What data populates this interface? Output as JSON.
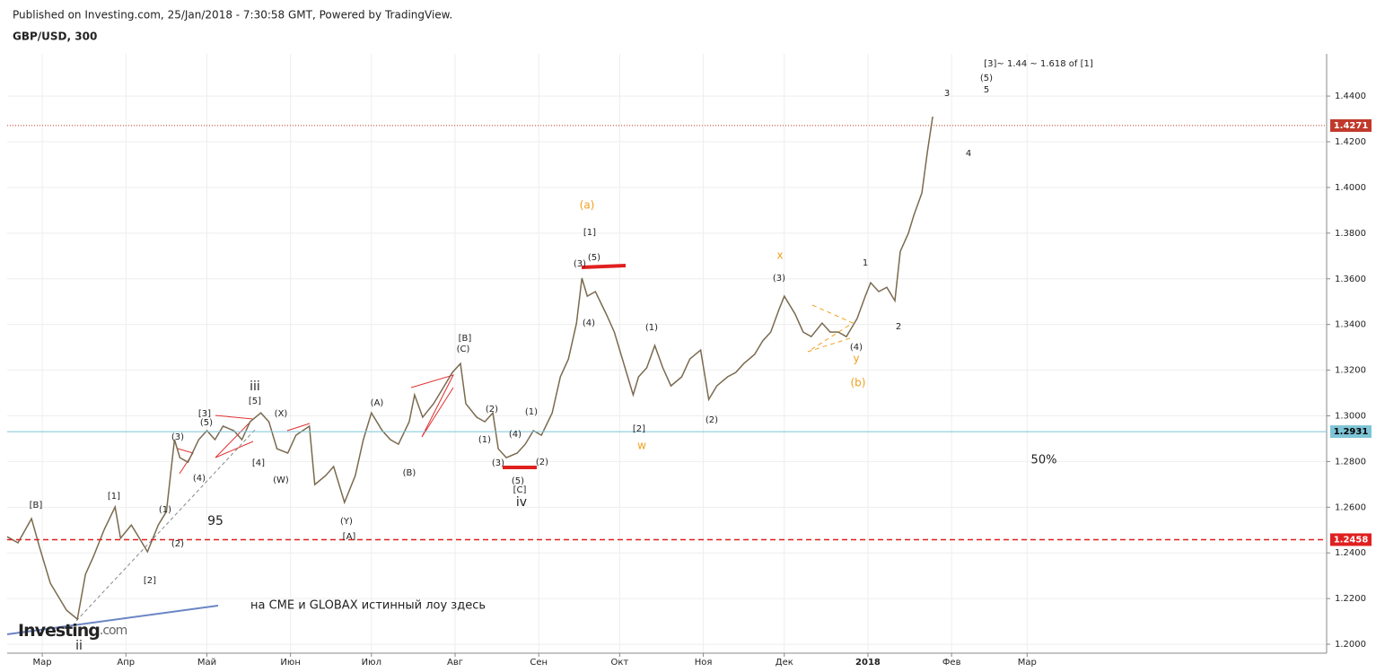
{
  "header": {
    "published": "Published on Investing.com, 25/Jan/2018 - 7:30:58 GMT, Powered by TradingView.",
    "symbol": "GBP/USD, 300"
  },
  "logo": [
    "Investing",
    ".com"
  ],
  "chart_data": {
    "type": "line",
    "x": [
      -13,
      -9,
      -4,
      -1,
      3,
      6,
      9,
      13,
      16,
      19,
      23,
      27,
      29,
      33,
      36,
      39,
      43,
      46,
      49,
      51,
      54,
      58,
      61,
      64,
      67,
      71,
      74,
      77,
      81,
      84,
      87,
      91,
      94,
      99,
      101,
      105,
      108,
      112,
      116,
      119,
      122,
      126,
      129,
      132,
      136,
      138,
      141,
      145,
      149,
      152,
      155,
      157,
      161,
      164,
      167,
      169,
      172,
      176,
      179,
      182,
      185,
      189,
      192,
      195,
      198,
      200,
      202,
      205,
      209,
      212,
      215,
      219,
      221,
      224,
      227,
      230,
      233,
      237,
      240,
      244,
      247,
      250,
      254,
      257,
      260,
      264,
      267,
      270,
      273,
      275,
      279,
      282,
      285,
      289,
      292,
      295,
      298,
      302,
      305,
      307,
      310,
      313,
      316,
      318,
      321,
      323,
      326,
      328,
      330
    ],
    "series": [
      {
        "color": "#7a6a4f",
        "values": [
          1.2471,
          1.2444,
          1.255,
          1.2424,
          1.2267,
          1.2208,
          1.2149,
          1.211,
          1.2306,
          1.2385,
          1.2503,
          1.2601,
          1.2464,
          1.2522,
          1.2464,
          1.2405,
          1.2522,
          1.2581,
          1.2896,
          1.2817,
          1.2797,
          1.2896,
          1.2935,
          1.2896,
          1.2955,
          1.2935,
          1.2896,
          1.2974,
          1.3013,
          1.2974,
          1.2856,
          1.2837,
          1.2915,
          1.2955,
          1.2699,
          1.2738,
          1.2778,
          1.2621,
          1.2738,
          1.2896,
          1.3013,
          1.2935,
          1.2896,
          1.2876,
          1.2974,
          1.3092,
          1.2994,
          1.3053,
          1.3131,
          1.319,
          1.3229,
          1.3053,
          1.2994,
          1.2974,
          1.3013,
          1.2856,
          1.2817,
          1.2837,
          1.2876,
          1.2935,
          1.2915,
          1.3013,
          1.3171,
          1.3249,
          1.3406,
          1.3603,
          1.3524,
          1.3544,
          1.3446,
          1.3367,
          1.3249,
          1.3092,
          1.3171,
          1.321,
          1.3308,
          1.321,
          1.3131,
          1.3171,
          1.3249,
          1.3288,
          1.3072,
          1.3131,
          1.3171,
          1.319,
          1.3229,
          1.3269,
          1.3328,
          1.3367,
          1.3465,
          1.3524,
          1.3446,
          1.3367,
          1.3347,
          1.3406,
          1.3367,
          1.3367,
          1.3347,
          1.3426,
          1.3524,
          1.3583,
          1.3544,
          1.3563,
          1.3504,
          1.372,
          1.3799,
          1.3878,
          1.3976,
          1.4153,
          1.431
        ]
      }
    ],
    "xlim": [
      -13,
      476
    ],
    "xticks": [
      {
        "value": 0,
        "label": "Мар"
      },
      {
        "value": 31,
        "label": "Апр"
      },
      {
        "value": 61,
        "label": "Май"
      },
      {
        "value": 92,
        "label": "Июн"
      },
      {
        "value": 122,
        "label": "Июл"
      },
      {
        "value": 153,
        "label": "Авг"
      },
      {
        "value": 184,
        "label": "Сен"
      },
      {
        "value": 214,
        "label": "Окт"
      },
      {
        "value": 245,
        "label": "Ноя"
      },
      {
        "value": 275,
        "label": "Дек"
      },
      {
        "value": 306,
        "label": "2018"
      },
      {
        "value": 337,
        "label": "Фев"
      },
      {
        "value": 365,
        "label": "Мар"
      }
    ],
    "ylim": [
      1.1961,
      1.4585
    ],
    "yticks": [
      {
        "value": 1.2,
        "label": "1.2000"
      },
      {
        "value": 1.22,
        "label": "1.2200"
      },
      {
        "value": 1.24,
        "label": "1.2400"
      },
      {
        "value": 1.26,
        "label": "1.2600"
      },
      {
        "value": 1.28,
        "label": "1.2800"
      },
      {
        "value": 1.3,
        "label": "1.3000"
      },
      {
        "value": 1.32,
        "label": "1.3200"
      },
      {
        "value": 1.34,
        "label": "1.3400"
      },
      {
        "value": 1.36,
        "label": "1.3600"
      },
      {
        "value": 1.38,
        "label": "1.3800"
      },
      {
        "value": 1.4,
        "label": "1.4000"
      },
      {
        "value": 1.42,
        "label": "1.4200"
      },
      {
        "value": 1.44,
        "label": "1.4400"
      }
    ],
    "grid": true,
    "price_lines": [
      {
        "value": 1.4271,
        "color": "#c0392b",
        "style": "dotted"
      },
      {
        "value": 1.2931,
        "color": "#7ec4d6",
        "style": "solid"
      },
      {
        "value": 1.2458,
        "color": "#e02020",
        "style": "dashed"
      }
    ],
    "annotations": [
      {
        "text": "[B]"
      },
      {
        "text": "[1]"
      },
      {
        "text": "(1)"
      },
      {
        "text": "(2)"
      },
      {
        "text": "[2]"
      },
      {
        "text": "95"
      },
      {
        "text": "ii"
      },
      {
        "text": "(3)"
      },
      {
        "text": "[3]"
      },
      {
        "text": "(5)"
      },
      {
        "text": "(4)"
      },
      {
        "text": "iii"
      },
      {
        "text": "[5]"
      },
      {
        "text": "[4]"
      },
      {
        "text": "(X)"
      },
      {
        "text": "(W)"
      },
      {
        "text": "(Y)"
      },
      {
        "text": "[A]"
      },
      {
        "text": "(A)"
      },
      {
        "text": "(B)"
      },
      {
        "text": "[B]"
      },
      {
        "text": "(C)"
      },
      {
        "text": "(2)"
      },
      {
        "text": "(1)"
      },
      {
        "text": "(4)"
      },
      {
        "text": "(3)"
      },
      {
        "text": "(5)"
      },
      {
        "text": "[C]"
      },
      {
        "text": "iv"
      },
      {
        "text": "(1)"
      },
      {
        "text": "(2)"
      },
      {
        "text": "(a)",
        "color": "#f0a020"
      },
      {
        "text": "[1]"
      },
      {
        "text": "(3)"
      },
      {
        "text": "(5)"
      },
      {
        "text": "(4)"
      },
      {
        "text": "(1)"
      },
      {
        "text": "[2]"
      },
      {
        "text": "w",
        "color": "#f0a020"
      },
      {
        "text": "(2)"
      },
      {
        "text": "x",
        "color": "#f0a020"
      },
      {
        "text": "(3)"
      },
      {
        "text": "(4)"
      },
      {
        "text": "y",
        "color": "#f0a020"
      },
      {
        "text": "(b)",
        "color": "#f0a020"
      },
      {
        "text": "1"
      },
      {
        "text": "2"
      },
      {
        "text": "3"
      },
      {
        "text": "4"
      },
      {
        "text": "(5)"
      },
      {
        "text": "5"
      },
      {
        "text": "[3]~ 1.44 ~ 1.618 of [1]"
      },
      {
        "text": "50%"
      },
      {
        "text": "на CME и GLOBAX  истинный лоу здесь"
      }
    ]
  }
}
